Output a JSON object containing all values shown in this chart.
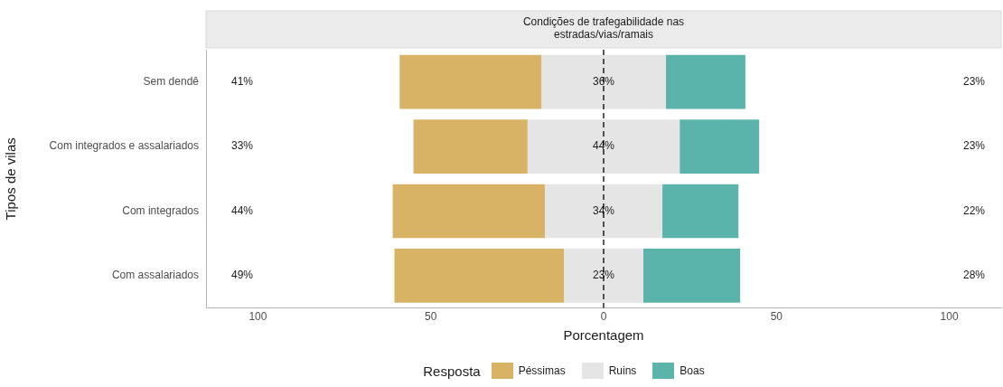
{
  "chart_data": {
    "type": "bar",
    "orientation": "horizontal",
    "title": "Condições de trafegabilidade nas estradas/vias/ramais",
    "xlabel": "Porcentagem",
    "ylabel": "Tipos de vilas",
    "legend_title": "Resposta",
    "legend": "bottom",
    "grid": false,
    "categories": [
      "Sem dendê",
      "Com integrados e assalariados",
      "Com integrados",
      "Com assalariados"
    ],
    "series": [
      {
        "name": "Péssimas",
        "color": "#d8b365",
        "values": [
          41,
          33,
          44,
          49
        ],
        "base": [
          -59,
          -55,
          -61,
          -60.5
        ],
        "value_labels": [
          "41%",
          "33%",
          "44%",
          "49%"
        ]
      },
      {
        "name": "Ruins",
        "color": "#e5e5e5",
        "values": [
          36,
          44,
          34,
          23
        ],
        "base": [
          -18,
          -22,
          -17,
          -11.5
        ],
        "value_labels": [
          "36%",
          "44%",
          "34%",
          "23%"
        ]
      },
      {
        "name": "Boas",
        "color": "#5ab4ac",
        "values": [
          23,
          23,
          22,
          28
        ],
        "base": [
          18,
          22,
          17,
          11.5
        ],
        "value_labels": [
          "23%",
          "23%",
          "22%",
          "28%"
        ]
      }
    ],
    "xlim": [
      -115,
      115
    ],
    "xticks": [
      {
        "value": -100,
        "label": "100"
      },
      {
        "value": -50,
        "label": "50"
      },
      0,
      50,
      {
        "value": 100,
        "label": "100"
      }
    ],
    "ref_lines": [
      {
        "axis": "x",
        "value": 0,
        "color": "#000000",
        "line_style": "dashed"
      }
    ]
  }
}
